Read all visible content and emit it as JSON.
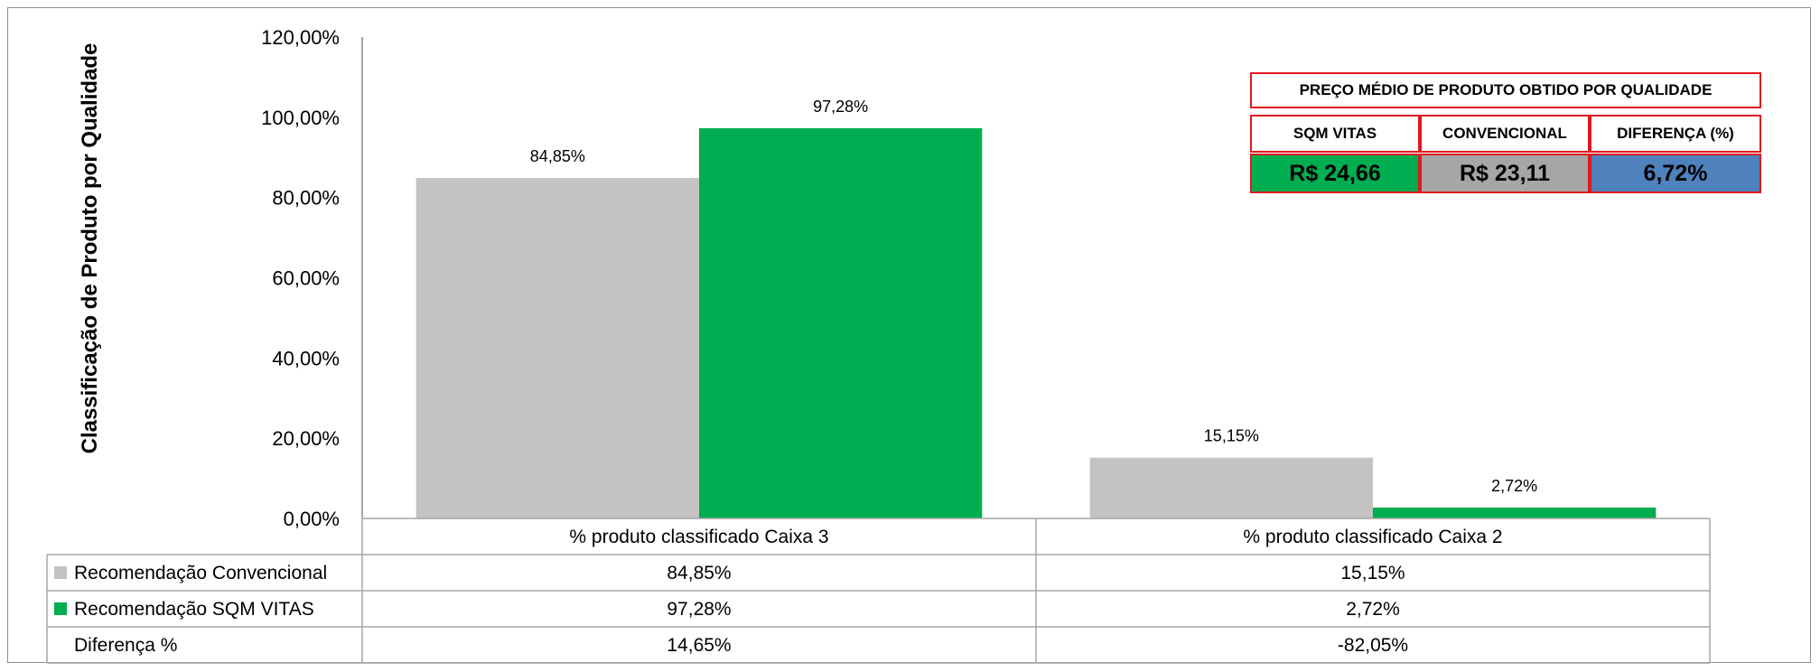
{
  "chart_data": {
    "type": "bar",
    "ylabel": "Classificação de Produto por Qualidade",
    "ylim": [
      0,
      120
    ],
    "y_ticks": [
      "0,00%",
      "20,00%",
      "40,00%",
      "60,00%",
      "80,00%",
      "100,00%",
      "120,00%"
    ],
    "categories": [
      "% produto classificado Caixa 3",
      "% produto classificado Caixa 2"
    ],
    "series": [
      {
        "name": "Recomendação Convencional",
        "color": "#c4c3c2",
        "values": [
          84.85,
          15.15
        ],
        "labels": [
          "84,85%",
          "15,15%"
        ]
      },
      {
        "name": "Recomendação SQM VITAS",
        "color": "#00ad50",
        "values": [
          97.28,
          2.72
        ],
        "labels": [
          "97,28%",
          "2,72%"
        ]
      }
    ],
    "table_rows": [
      {
        "label": "Recomendação Convencional",
        "key_color": "#c4c3c2",
        "cells": [
          "84,85%",
          "15,15%"
        ]
      },
      {
        "label": "Recomendação SQM VITAS",
        "key_color": "#00ad50",
        "cells": [
          "97,28%",
          "2,72%"
        ]
      },
      {
        "label": "Diferença %",
        "key_color": "",
        "cells": [
          "14,65%",
          "-82,05%"
        ]
      }
    ],
    "grid": false
  },
  "price_table": {
    "title": "PREÇO MÉDIO DE PRODUTO OBTIDO POR QUALIDADE",
    "headers": [
      "SQM VITAS",
      "CONVENCIONAL",
      "DIFERENÇA (%)"
    ],
    "values": [
      "R$ 24,66",
      "R$ 23,11",
      "6,72%"
    ],
    "value_colors": [
      "#00ad50",
      "#a6a6a6",
      "#4f81bd"
    ]
  }
}
